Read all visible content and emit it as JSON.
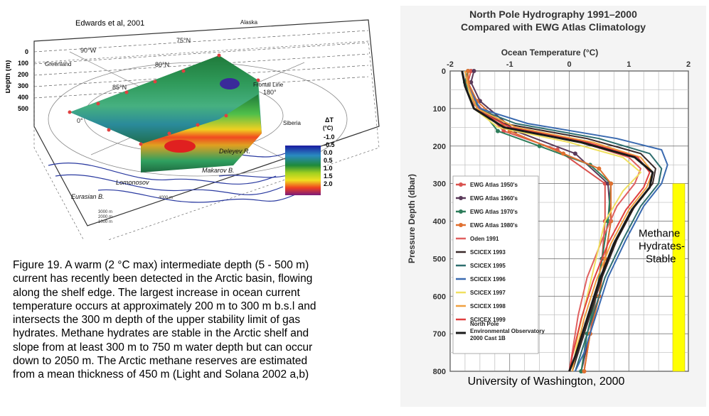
{
  "figure3d": {
    "credit": "Edwards et al, 2001",
    "depth_axis_label": "Depth (m)",
    "depth_ticks": [
      "0",
      "100",
      "200",
      "300",
      "400",
      "500"
    ],
    "place_labels": [
      "Greenland",
      "Alaska",
      "Siberia",
      "Frontal Line",
      "Lomonosov",
      "Eurasian B.",
      "Makarov B.",
      "Deleyev R."
    ],
    "lat_labels": [
      "75°N",
      "80°N",
      "85°N"
    ],
    "lon_labels": [
      "90°W",
      "180°",
      "0°"
    ],
    "isobaths": [
      "4000 m",
      "3000 m",
      "2000 m",
      "1000 m"
    ],
    "delta_t_title": "ΔT",
    "delta_t_unit": "(°C)",
    "delta_t_values": [
      "-1.0",
      "-0.5",
      "0.0",
      "0.5",
      "1.0",
      "1.5",
      "2.0"
    ]
  },
  "caption": {
    "lines": [
      "Figure 19. A warm (2 °C max) intermediate depth (5 - 500 m)",
      "current has recently been detected in the Arctic basin, flowing",
      "along the shelf edge. The largest increase in ocean current",
      "temperature occurs at approximately 200 m to 300 m b.s.l and",
      "intersects the 300 m depth of the upper stability limit of gas",
      "hydrates. Methane hydrates are stable in the Arctic shelf and",
      "slope from at least 300 m to 750 m water depth but can occur",
      "down to 2050 m. The Arctic methane reserves  are estimated",
      "from a mean thickness of 450 m (Light and Solana 2002 a,b)"
    ]
  },
  "chart_data": {
    "type": "line",
    "title": "North Pole Hydrography  1991–2000",
    "subtitle": "Compared with EWG Atlas Climatology",
    "xlabel": "Ocean Temperature (°C)",
    "ylabel": "Pressure Depth (dbar)",
    "xlim": [
      -2,
      2
    ],
    "ylim": [
      800,
      0
    ],
    "x_ticks": [
      "-2",
      "-1",
      "0",
      "1",
      "2"
    ],
    "y_ticks": [
      "0",
      "100",
      "200",
      "300",
      "400",
      "500",
      "600",
      "700",
      "800"
    ],
    "grid": true,
    "legend_position": "left-middle",
    "hydrate_zone": {
      "from": 300,
      "to": 800,
      "color": "#ffff00",
      "label_lines": [
        "Methane",
        "Hydrates-",
        "Stable"
      ]
    },
    "footer": "University of Washington, 2000",
    "series": [
      {
        "name": "EWG Atlas 1950's",
        "color": "#d9534f",
        "marker": "circle",
        "points": [
          [
            -1.65,
            0
          ],
          [
            -1.7,
            30
          ],
          [
            -1.6,
            80
          ],
          [
            -1.1,
            160
          ],
          [
            -0.2,
            210
          ],
          [
            0.6,
            300
          ],
          [
            0.6,
            400
          ],
          [
            0.55,
            500
          ],
          [
            0.45,
            600
          ],
          [
            0.35,
            700
          ],
          [
            0.25,
            800
          ]
        ]
      },
      {
        "name": "EWG Atlas 1960's",
        "color": "#5a3a5a",
        "marker": "circle",
        "points": [
          [
            -1.6,
            0
          ],
          [
            -1.65,
            30
          ],
          [
            -1.5,
            80
          ],
          [
            -0.9,
            160
          ],
          [
            0.1,
            220
          ],
          [
            0.65,
            300
          ],
          [
            0.7,
            400
          ],
          [
            0.6,
            500
          ],
          [
            0.5,
            600
          ],
          [
            0.35,
            700
          ],
          [
            0.2,
            800
          ]
        ]
      },
      {
        "name": "EWG Atlas 1970's",
        "color": "#2e7d5b",
        "marker": "circle",
        "points": [
          [
            -1.7,
            0
          ],
          [
            -1.75,
            30
          ],
          [
            -1.6,
            80
          ],
          [
            -1.2,
            160
          ],
          [
            -0.5,
            200
          ],
          [
            0.35,
            250
          ],
          [
            0.7,
            300
          ],
          [
            0.65,
            400
          ],
          [
            0.55,
            500
          ],
          [
            0.45,
            600
          ],
          [
            0.3,
            700
          ],
          [
            0.2,
            800
          ]
        ]
      },
      {
        "name": "EWG Atlas 1980's",
        "color": "#e07030",
        "marker": "circle",
        "points": [
          [
            -1.7,
            0
          ],
          [
            -1.7,
            30
          ],
          [
            -1.55,
            80
          ],
          [
            -1.0,
            160
          ],
          [
            -0.1,
            220
          ],
          [
            0.5,
            260
          ],
          [
            0.7,
            300
          ],
          [
            0.7,
            400
          ],
          [
            0.6,
            500
          ],
          [
            0.5,
            600
          ],
          [
            0.35,
            700
          ],
          [
            0.25,
            800
          ]
        ]
      },
      {
        "name": "Oden 1991",
        "color": "#e06060",
        "marker": "line",
        "points": [
          [
            -1.75,
            0
          ],
          [
            -1.7,
            40
          ],
          [
            -1.6,
            90
          ],
          [
            -1.0,
            150
          ],
          [
            0.2,
            190
          ],
          [
            1.0,
            230
          ],
          [
            1.2,
            260
          ],
          [
            1.1,
            300
          ],
          [
            0.8,
            360
          ],
          [
            0.55,
            450
          ],
          [
            0.3,
            550
          ],
          [
            0.15,
            650
          ],
          [
            0.05,
            750
          ],
          [
            0.0,
            800
          ]
        ]
      },
      {
        "name": "SCICEX 1993",
        "color": "#3a2a2a",
        "marker": "line",
        "points": [
          [
            -1.8,
            0
          ],
          [
            -1.75,
            40
          ],
          [
            -1.6,
            100
          ],
          [
            -1.1,
            140
          ],
          [
            0.3,
            180
          ],
          [
            1.2,
            220
          ],
          [
            1.45,
            260
          ],
          [
            1.4,
            300
          ],
          [
            1.1,
            360
          ],
          [
            0.8,
            450
          ],
          [
            0.55,
            550
          ],
          [
            0.35,
            650
          ],
          [
            0.15,
            750
          ],
          [
            0.05,
            800
          ]
        ]
      },
      {
        "name": "SCICEX 1995",
        "color": "#2e6e6e",
        "marker": "line",
        "points": [
          [
            -1.75,
            0
          ],
          [
            -1.7,
            40
          ],
          [
            -1.55,
            100
          ],
          [
            -0.9,
            140
          ],
          [
            0.5,
            180
          ],
          [
            1.35,
            220
          ],
          [
            1.55,
            260
          ],
          [
            1.5,
            300
          ],
          [
            1.2,
            360
          ],
          [
            0.9,
            450
          ],
          [
            0.6,
            550
          ],
          [
            0.4,
            650
          ],
          [
            0.2,
            750
          ],
          [
            0.1,
            800
          ]
        ]
      },
      {
        "name": "SCICEX 1996",
        "color": "#3a6ab0",
        "marker": "line",
        "points": [
          [
            -1.75,
            0
          ],
          [
            -1.7,
            40
          ],
          [
            -1.5,
            100
          ],
          [
            -0.7,
            140
          ],
          [
            0.8,
            180
          ],
          [
            1.55,
            210
          ],
          [
            1.65,
            250
          ],
          [
            1.55,
            300
          ],
          [
            1.25,
            360
          ],
          [
            0.95,
            450
          ],
          [
            0.65,
            550
          ],
          [
            0.45,
            650
          ],
          [
            0.25,
            750
          ],
          [
            0.1,
            800
          ]
        ]
      },
      {
        "name": "SCICEX 1997",
        "color": "#f0e060",
        "marker": "line",
        "points": [
          [
            -1.75,
            0
          ],
          [
            -1.7,
            40
          ],
          [
            -1.6,
            100
          ],
          [
            -1.2,
            150
          ],
          [
            0.0,
            190
          ],
          [
            0.9,
            230
          ],
          [
            1.2,
            270
          ],
          [
            0.9,
            320
          ],
          [
            0.6,
            400
          ],
          [
            0.45,
            500
          ],
          [
            0.3,
            600
          ],
          [
            0.15,
            700
          ],
          [
            0.05,
            800
          ]
        ]
      },
      {
        "name": "SCICEX 1998",
        "color": "#f0a040",
        "marker": "line",
        "points": [
          [
            -1.75,
            0
          ],
          [
            -1.7,
            40
          ],
          [
            -1.55,
            100
          ],
          [
            -0.9,
            150
          ],
          [
            0.4,
            190
          ],
          [
            1.2,
            230
          ],
          [
            1.4,
            270
          ],
          [
            1.3,
            310
          ],
          [
            1.0,
            370
          ],
          [
            0.7,
            460
          ],
          [
            0.45,
            560
          ],
          [
            0.25,
            660
          ],
          [
            0.1,
            760
          ],
          [
            0.05,
            800
          ]
        ]
      },
      {
        "name": "SCICEX 1999",
        "color": "#e04040",
        "marker": "line",
        "points": [
          [
            -1.8,
            0
          ],
          [
            -1.75,
            40
          ],
          [
            -1.6,
            100
          ],
          [
            -1.0,
            150
          ],
          [
            0.3,
            190
          ],
          [
            1.15,
            230
          ],
          [
            1.35,
            270
          ],
          [
            1.25,
            310
          ],
          [
            0.95,
            370
          ],
          [
            0.65,
            460
          ],
          [
            0.4,
            560
          ],
          [
            0.2,
            660
          ],
          [
            0.05,
            760
          ],
          [
            0.0,
            800
          ]
        ]
      },
      {
        "name": "North Pole Environmental Observatory 2000 Cast 1B",
        "color": "#1a1a1a",
        "marker": "line",
        "width": 3,
        "points": [
          [
            -1.8,
            0
          ],
          [
            -1.75,
            40
          ],
          [
            -1.6,
            100
          ],
          [
            -1.1,
            150
          ],
          [
            0.2,
            190
          ],
          [
            1.1,
            230
          ],
          [
            1.4,
            270
          ],
          [
            1.35,
            310
          ],
          [
            1.05,
            370
          ],
          [
            0.75,
            460
          ],
          [
            0.5,
            560
          ],
          [
            0.3,
            660
          ],
          [
            0.1,
            760
          ],
          [
            0.0,
            800
          ]
        ]
      }
    ]
  }
}
